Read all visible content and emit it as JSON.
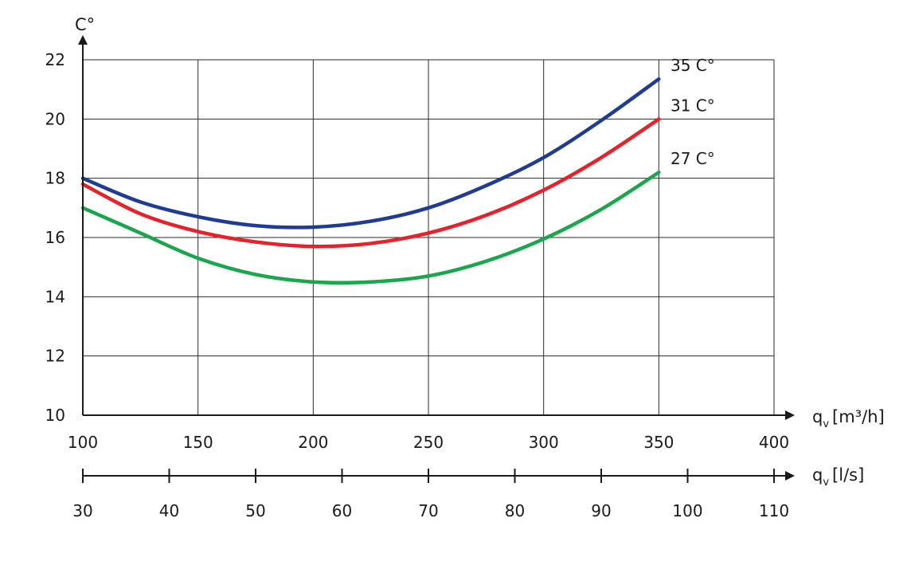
{
  "chart_data": {
    "type": "line",
    "ylabel": "C°",
    "ylim": [
      10,
      22
    ],
    "yticks": [
      "10",
      "12",
      "14",
      "16",
      "18",
      "20",
      "22"
    ],
    "x_primary": {
      "label_base": "q",
      "label_sub": "v",
      "label_unit": "[m³/h]",
      "xlim": [
        100,
        400
      ],
      "ticks": [
        "100",
        "150",
        "200",
        "250",
        "300",
        "350",
        "400"
      ]
    },
    "x_secondary": {
      "label_base": "q",
      "label_sub": "v",
      "label_unit": "[l/s]",
      "xlim": [
        30,
        110
      ],
      "ticks": [
        "30",
        "40",
        "50",
        "60",
        "70",
        "80",
        "90",
        "100",
        "110"
      ]
    },
    "grid": true,
    "series": [
      {
        "name": "35 C°",
        "color": "#1f3b96",
        "x": [
          100,
          125,
          150,
          175,
          200,
          225,
          250,
          275,
          300,
          325,
          350
        ],
        "y": [
          18.0,
          17.2,
          16.7,
          16.4,
          16.35,
          16.55,
          17.0,
          17.75,
          18.7,
          19.95,
          21.35
        ]
      },
      {
        "name": "31 C°",
        "color": "#e8202a",
        "x": [
          100,
          125,
          150,
          175,
          200,
          225,
          250,
          275,
          300,
          325,
          350
        ],
        "y": [
          17.8,
          16.8,
          16.2,
          15.85,
          15.7,
          15.8,
          16.15,
          16.75,
          17.6,
          18.7,
          20.0
        ]
      },
      {
        "name": "27 C°",
        "color": "#1aa64a",
        "x": [
          100,
          125,
          150,
          175,
          200,
          225,
          250,
          275,
          300,
          325,
          350
        ],
        "y": [
          17.0,
          16.15,
          15.3,
          14.75,
          14.5,
          14.5,
          14.7,
          15.2,
          15.95,
          16.95,
          18.2
        ]
      }
    ]
  }
}
